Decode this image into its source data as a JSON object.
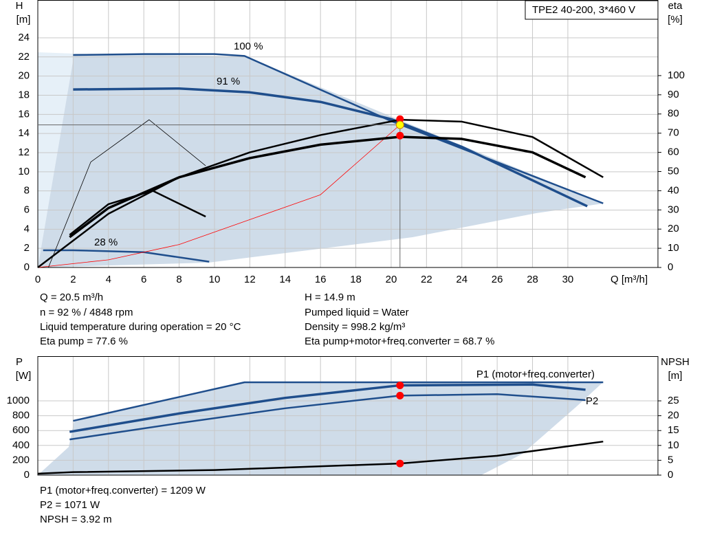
{
  "chart_data": [
    {
      "type": "line",
      "ylabel": "H",
      "yunit": "[m]",
      "y2label": "eta",
      "y2unit": "[%]",
      "xlabel": "Q [m³/h]",
      "legend_box": "TPE2 40-200, 3*460 V",
      "xlim": [
        0,
        35.1
      ],
      "xticks": [
        0,
        2,
        4,
        6,
        8,
        10,
        12,
        14,
        16,
        18,
        20,
        22,
        24,
        26,
        28,
        30
      ],
      "ylim": [
        0,
        27.95
      ],
      "yticks": [
        0,
        2,
        4,
        6,
        8,
        10,
        12,
        14,
        16,
        18,
        20,
        22,
        24
      ],
      "y2lim": [
        0,
        139.4
      ],
      "y2ticks": [
        0,
        10,
        20,
        30,
        40,
        50,
        60,
        70,
        80,
        90,
        100
      ],
      "series": [
        {
          "name": "100 %",
          "color": "#1f4e8c",
          "width": 2.5,
          "x": [
            2,
            6,
            10,
            11.7,
            20,
            32
          ],
          "values": [
            22.2,
            22.3,
            22.3,
            22.1,
            15.3,
            6.7
          ]
        },
        {
          "name": "91 %",
          "color": "#1f4e8c",
          "width": 3.5,
          "x": [
            2,
            8,
            12,
            16,
            20,
            24,
            31.1
          ],
          "values": [
            18.6,
            18.7,
            18.3,
            17.3,
            15.5,
            12.6,
            6.4
          ]
        },
        {
          "name": "28 %",
          "color": "#1f4e8c",
          "width": 2.5,
          "x": [
            0.3,
            2,
            6,
            9.7
          ],
          "values": [
            1.8,
            1.8,
            1.6,
            0.6
          ]
        },
        {
          "color": "#ff0000",
          "width": 0.8,
          "x": [
            0,
            4,
            8,
            12,
            16,
            20.5
          ],
          "values": [
            0,
            0.8,
            2.4,
            5.0,
            7.6,
            14.9
          ]
        },
        {
          "color": "#000000",
          "width": 2.5,
          "axis": "y2",
          "x": [
            0,
            4,
            8,
            12,
            16,
            20.5,
            24,
            28,
            32
          ],
          "values": [
            0,
            28,
            47,
            60,
            69,
            77,
            76,
            68,
            47
          ]
        },
        {
          "color": "#000000",
          "width": 3.5,
          "axis": "y2",
          "x": [
            1.8,
            4,
            8,
            12,
            16,
            20.5,
            24,
            28,
            31
          ],
          "values": [
            15.8,
            31,
            47,
            57,
            64,
            68.1,
            67,
            60,
            47
          ]
        },
        {
          "color": "#000000",
          "width": 0.8,
          "axis": "y2",
          "x": [
            0.6,
            3,
            6.3,
            9.5
          ],
          "values": [
            0,
            55,
            77,
            53
          ]
        },
        {
          "color": "#000000",
          "width": 2.5,
          "axis": "y2",
          "x": [
            1.8,
            4,
            6.5,
            9.5
          ],
          "values": [
            17,
            33,
            40,
            26.5
          ]
        },
        {
          "color": "#ff0000",
          "marker": true,
          "x": [
            20.5
          ],
          "values": [
            15.5
          ]
        },
        {
          "color": "#ffff00",
          "marker": true,
          "x": [
            20.5
          ],
          "values": [
            14.9
          ]
        },
        {
          "color": "#ff0000",
          "marker": true,
          "axis": "y2",
          "x": [
            20.5
          ],
          "values": [
            68.7
          ]
        }
      ],
      "annotations": [
        "Q = 20.5 m³/h",
        "n = 92 % / 4848 rpm",
        "Liquid temperature during operation = 20 °C",
        "Eta pump = 77.6 %",
        "H = 14.9 m",
        "Pumped liquid = Water",
        "Density = 998.2 kg/m³",
        "Eta pump+motor+freq.converter = 68.7 %"
      ]
    },
    {
      "type": "line",
      "ylabel": "P",
      "yunit": "[W]",
      "y2label": "NPSH",
      "y2unit": "[m]",
      "xlim": [
        0,
        35.1
      ],
      "ylim": [
        0,
        1602
      ],
      "yticks": [
        0,
        200,
        400,
        600,
        800,
        1000
      ],
      "y2lim": [
        0,
        40.05
      ],
      "y2ticks": [
        0,
        5,
        10,
        15,
        20,
        25
      ],
      "series": [
        {
          "color": "#1f4e8c",
          "width": 2.5,
          "x": [
            2,
            11.7,
            32
          ],
          "values": [
            731,
            1250,
            1250
          ]
        },
        {
          "name": "P1 (motor+freq.converter)",
          "color": "#1f4e8c",
          "width": 3.5,
          "x": [
            1.8,
            8,
            14,
            20.5,
            28,
            31
          ],
          "values": [
            583,
            830,
            1040,
            1209,
            1220,
            1150
          ]
        },
        {
          "name": "P2",
          "color": "#1f4e8c",
          "width": 2.5,
          "x": [
            1.8,
            8,
            14,
            20.5,
            26,
            31
          ],
          "values": [
            480,
            700,
            900,
            1071,
            1090,
            1010
          ]
        },
        {
          "color": "#000000",
          "width": 2.5,
          "axis": "y2",
          "x": [
            0,
            2,
            10,
            20.5,
            26,
            32
          ],
          "values": [
            0.5,
            1,
            1.7,
            3.92,
            6.5,
            11.3
          ]
        },
        {
          "color": "#ff0000",
          "marker": true,
          "x": [
            20.5,
            20.5
          ],
          "values": [
            1209,
            1071
          ]
        },
        {
          "color": "#ff0000",
          "marker": true,
          "axis": "y2",
          "x": [
            20.5
          ],
          "values": [
            3.92
          ]
        }
      ],
      "annotations": [
        "P1 (motor+freq.converter) = 1209 W",
        "P2 = 1071 W",
        "NPSH = 3.92 m"
      ]
    }
  ]
}
